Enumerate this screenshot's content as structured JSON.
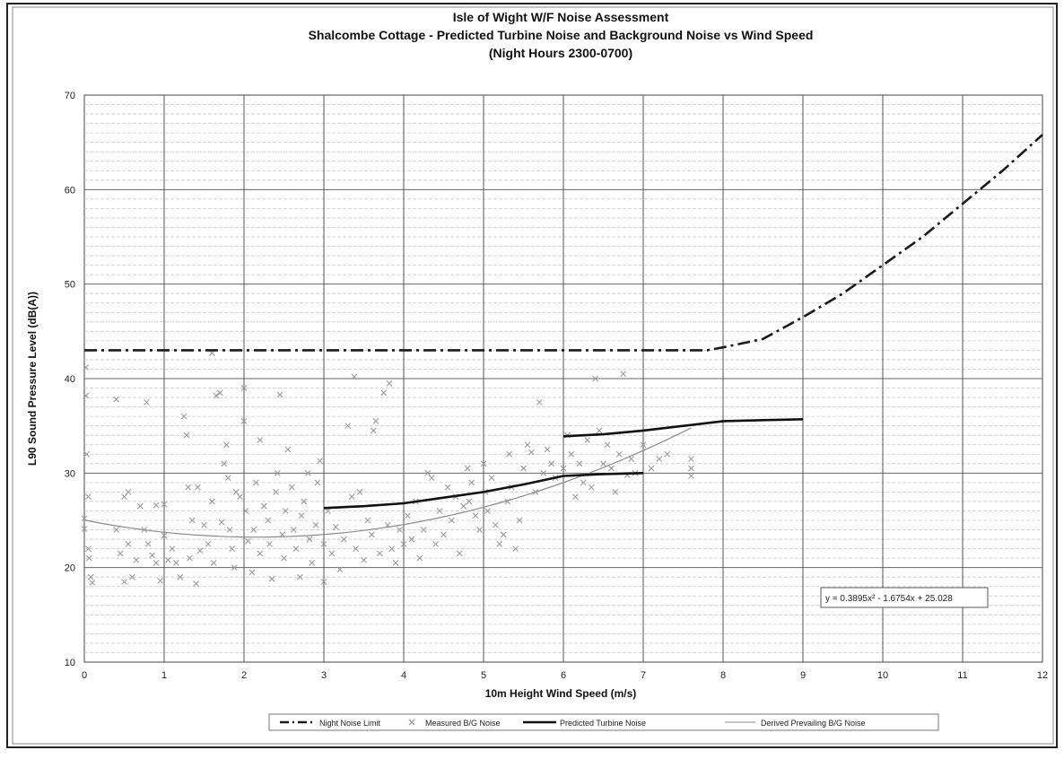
{
  "chart_data": {
    "type": "scatter",
    "title_lines": [
      "Isle of Wight W/F Noise Assessment",
      "Shalcombe Cottage - Predicted Turbine Noise and Background Noise vs Wind Speed",
      "(Night Hours 2300-0700)"
    ],
    "xlabel": "10m Height Wind Speed (m/s)",
    "ylabel": "L90 Sound Pressure Level (dB(A))",
    "xlim": [
      0,
      12
    ],
    "ylim": [
      10,
      70
    ],
    "x_ticks": [
      "0",
      "1",
      "2",
      "3",
      "4",
      "5",
      "6",
      "7",
      "8",
      "9",
      "10",
      "11",
      "12"
    ],
    "y_ticks": [
      "10",
      "20",
      "30",
      "40",
      "50",
      "60",
      "70"
    ],
    "grid": "major solid, minor dashed horizontal",
    "legend_position": "bottom",
    "trendline_equation": "y = 0.3895x² - 1.6754x + 25.028",
    "series": [
      {
        "name": "Night Noise Limit",
        "style": "dash-dot",
        "color": "#1a1a1a",
        "points": [
          [
            0,
            43
          ],
          [
            1,
            43
          ],
          [
            2,
            43
          ],
          [
            3,
            43
          ],
          [
            4,
            43
          ],
          [
            5,
            43
          ],
          [
            6,
            43
          ],
          [
            7,
            43
          ],
          [
            7.8,
            43
          ],
          [
            8,
            43.3
          ],
          [
            8.5,
            44.2
          ],
          [
            9,
            46.5
          ],
          [
            9.5,
            49
          ],
          [
            10,
            52
          ],
          [
            10.5,
            55
          ],
          [
            11,
            58.5
          ],
          [
            11.5,
            62
          ],
          [
            12,
            65.8
          ]
        ]
      },
      {
        "name": "Measured B/G Noise",
        "style": "marker-x",
        "color": "#9a9a9a",
        "points": [
          [
            0.0,
            25.2
          ],
          [
            0.0,
            24.1
          ],
          [
            0.02,
            41.2
          ],
          [
            0.02,
            38.2
          ],
          [
            0.03,
            32
          ],
          [
            0.05,
            27.5
          ],
          [
            0.05,
            22
          ],
          [
            0.06,
            21
          ],
          [
            0.08,
            19
          ],
          [
            0.1,
            18.4
          ],
          [
            0.4,
            37.8
          ],
          [
            0.4,
            24
          ],
          [
            0.45,
            21.5
          ],
          [
            0.5,
            27.5
          ],
          [
            0.5,
            18.5
          ],
          [
            0.55,
            28
          ],
          [
            0.55,
            22.5
          ],
          [
            0.6,
            19
          ],
          [
            0.65,
            20.8
          ],
          [
            0.7,
            26.5
          ],
          [
            0.75,
            24
          ],
          [
            0.78,
            37.5
          ],
          [
            0.8,
            22.5
          ],
          [
            0.85,
            21.3
          ],
          [
            0.9,
            26.6
          ],
          [
            0.9,
            20.5
          ],
          [
            0.95,
            18.6
          ],
          [
            1.0,
            23.4
          ],
          [
            1.0,
            26.7
          ],
          [
            1.05,
            20.8
          ],
          [
            1.1,
            22
          ],
          [
            1.15,
            20.5
          ],
          [
            1.2,
            19
          ],
          [
            1.25,
            36
          ],
          [
            1.28,
            34
          ],
          [
            1.3,
            28.5
          ],
          [
            1.32,
            21
          ],
          [
            1.35,
            25
          ],
          [
            1.4,
            18.3
          ],
          [
            1.42,
            28.5
          ],
          [
            1.45,
            21.8
          ],
          [
            1.5,
            24.5
          ],
          [
            1.55,
            22.5
          ],
          [
            1.6,
            42.7
          ],
          [
            1.6,
            27
          ],
          [
            1.62,
            20.5
          ],
          [
            1.65,
            38.2
          ],
          [
            1.7,
            38.5
          ],
          [
            1.72,
            24.8
          ],
          [
            1.75,
            31
          ],
          [
            1.78,
            33
          ],
          [
            1.8,
            29.5
          ],
          [
            1.82,
            24
          ],
          [
            1.85,
            22
          ],
          [
            1.88,
            20
          ],
          [
            1.9,
            28
          ],
          [
            1.95,
            27.5
          ],
          [
            2.0,
            39
          ],
          [
            2.0,
            35.5
          ],
          [
            2.02,
            26
          ],
          [
            2.05,
            22.8
          ],
          [
            2.1,
            19.5
          ],
          [
            2.12,
            24
          ],
          [
            2.15,
            29
          ],
          [
            2.2,
            33.5
          ],
          [
            2.2,
            21.5
          ],
          [
            2.25,
            26.5
          ],
          [
            2.3,
            25
          ],
          [
            2.32,
            22.5
          ],
          [
            2.35,
            18.8
          ],
          [
            2.4,
            28
          ],
          [
            2.42,
            30
          ],
          [
            2.45,
            38.3
          ],
          [
            2.48,
            23.5
          ],
          [
            2.5,
            21
          ],
          [
            2.52,
            26
          ],
          [
            2.55,
            32.5
          ],
          [
            2.6,
            28.5
          ],
          [
            2.62,
            24
          ],
          [
            2.65,
            22
          ],
          [
            2.7,
            19
          ],
          [
            2.72,
            25.5
          ],
          [
            2.75,
            27
          ],
          [
            2.8,
            30
          ],
          [
            2.82,
            23
          ],
          [
            2.85,
            20.5
          ],
          [
            2.9,
            24.5
          ],
          [
            2.92,
            29
          ],
          [
            2.95,
            31.3
          ],
          [
            3.0,
            18.5
          ],
          [
            3.0,
            22.5
          ],
          [
            3.05,
            26
          ],
          [
            3.1,
            21.5
          ],
          [
            3.15,
            24.3
          ],
          [
            3.2,
            19.8
          ],
          [
            3.25,
            23
          ],
          [
            3.3,
            35
          ],
          [
            3.35,
            27.5
          ],
          [
            3.38,
            40.2
          ],
          [
            3.4,
            22
          ],
          [
            3.45,
            28
          ],
          [
            3.5,
            20.8
          ],
          [
            3.55,
            25
          ],
          [
            3.6,
            23.5
          ],
          [
            3.62,
            34.5
          ],
          [
            3.65,
            35.5
          ],
          [
            3.7,
            21.5
          ],
          [
            3.75,
            38.5
          ],
          [
            3.8,
            24.5
          ],
          [
            3.82,
            39.5
          ],
          [
            3.85,
            22
          ],
          [
            3.9,
            20.5
          ],
          [
            3.95,
            24
          ],
          [
            4.0,
            22.5
          ],
          [
            4.05,
            25.5
          ],
          [
            4.1,
            23
          ],
          [
            4.15,
            27
          ],
          [
            4.2,
            21
          ],
          [
            4.25,
            24
          ],
          [
            4.3,
            30
          ],
          [
            4.35,
            29.5
          ],
          [
            4.4,
            22.5
          ],
          [
            4.45,
            26
          ],
          [
            4.5,
            23.5
          ],
          [
            4.55,
            28.5
          ],
          [
            4.6,
            25
          ],
          [
            4.65,
            27.5
          ],
          [
            4.7,
            21.5
          ],
          [
            4.75,
            26.5
          ],
          [
            4.8,
            30.5
          ],
          [
            4.82,
            27
          ],
          [
            4.85,
            29
          ],
          [
            4.9,
            25.5
          ],
          [
            4.95,
            24
          ],
          [
            5.0,
            31
          ],
          [
            5.02,
            28
          ],
          [
            5.05,
            26
          ],
          [
            5.1,
            29.5
          ],
          [
            5.15,
            24.5
          ],
          [
            5.2,
            22.5
          ],
          [
            5.25,
            23.5
          ],
          [
            5.3,
            27
          ],
          [
            5.32,
            32
          ],
          [
            5.35,
            28.5
          ],
          [
            5.4,
            22
          ],
          [
            5.45,
            25
          ],
          [
            5.5,
            30.5
          ],
          [
            5.55,
            33
          ],
          [
            5.6,
            32.2
          ],
          [
            5.65,
            28
          ],
          [
            5.7,
            37.5
          ],
          [
            5.75,
            30
          ],
          [
            5.8,
            32.5
          ],
          [
            5.85,
            31
          ],
          [
            5.9,
            29.5
          ],
          [
            6.0,
            30.5
          ],
          [
            6.05,
            34
          ],
          [
            6.1,
            32
          ],
          [
            6.15,
            27.5
          ],
          [
            6.2,
            31
          ],
          [
            6.25,
            29
          ],
          [
            6.3,
            33.5
          ],
          [
            6.35,
            28.5
          ],
          [
            6.4,
            40
          ],
          [
            6.45,
            34.5
          ],
          [
            6.5,
            31
          ],
          [
            6.55,
            33
          ],
          [
            6.6,
            30.5
          ],
          [
            6.65,
            28
          ],
          [
            6.7,
            32
          ],
          [
            6.75,
            40.5
          ],
          [
            6.8,
            29.8
          ],
          [
            6.85,
            31.5
          ],
          [
            6.9,
            30
          ],
          [
            7.0,
            33
          ],
          [
            7.1,
            30.5
          ],
          [
            7.2,
            31.5
          ],
          [
            7.3,
            32
          ],
          [
            7.6,
            31.5
          ],
          [
            7.6,
            30.5
          ],
          [
            7.6,
            29.7
          ]
        ]
      },
      {
        "name": "Predicted Turbine Noise",
        "style": "solid-thick",
        "color": "#111111",
        "segments": [
          [
            [
              3,
              26.3
            ],
            [
              3.5,
              26.5
            ],
            [
              4,
              26.8
            ],
            [
              4.5,
              27.4
            ],
            [
              5,
              28
            ],
            [
              5.5,
              28.8
            ],
            [
              6,
              29.7
            ],
            [
              6.5,
              29.9
            ],
            [
              7,
              30
            ]
          ],
          [
            [
              6,
              33.9
            ],
            [
              6.5,
              34.1
            ],
            [
              7,
              34.5
            ],
            [
              7.5,
              35
            ],
            [
              8,
              35.5
            ],
            [
              8.5,
              35.6
            ],
            [
              9,
              35.7
            ]
          ]
        ]
      },
      {
        "name": "Derived Prevailing B/G Noise",
        "style": "solid-thin",
        "color": "#8a8a8a",
        "equation_coefficients": [
          0.3895,
          -1.6754,
          25.028
        ],
        "domain": [
          0,
          7.6
        ]
      }
    ]
  }
}
